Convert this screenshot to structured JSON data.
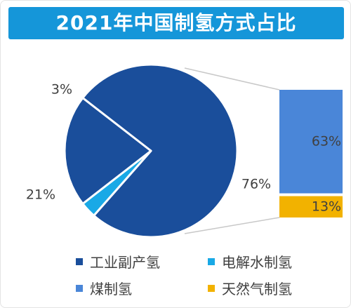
{
  "chart_data": {
    "type": "pie",
    "title": "2021年中国制氢方式占比",
    "slices": [
      {
        "name": "工业副产氢",
        "value": 76,
        "label": "76%",
        "color": "#1a4e9b"
      },
      {
        "name": "电解水制氢",
        "value": 3,
        "label": "3%",
        "color": "#19a9e6"
      },
      {
        "name": "煤制氢及天然气制氢",
        "value": 21,
        "label": "21%",
        "color": "#1a4e9b"
      }
    ],
    "breakdown": {
      "of_slice": "21%",
      "bars": [
        {
          "name": "煤制氢",
          "value": 63,
          "label": "63%",
          "color": "#4a86d8"
        },
        {
          "name": "天然气制氢",
          "value": 13,
          "label": "13%",
          "color": "#f2b200"
        }
      ]
    },
    "legend": [
      {
        "name": "工业副产氢",
        "color": "#1a4e9b"
      },
      {
        "name": "电解水制氢",
        "color": "#19a9e6"
      },
      {
        "name": "煤制氢",
        "color": "#4a86d8"
      },
      {
        "name": "天然气制氢",
        "color": "#f2b200"
      }
    ],
    "legend_position": "bottom"
  }
}
